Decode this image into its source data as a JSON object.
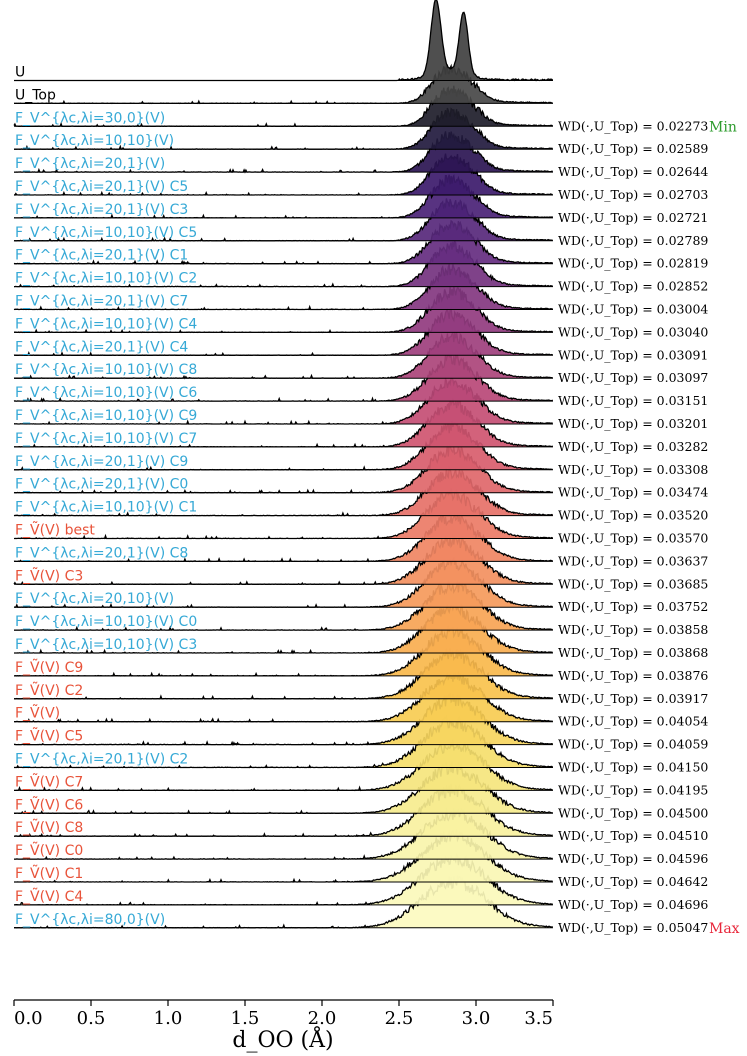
{
  "chart_data": {
    "type": "ridgeline",
    "xlabel": "d_OO (Å)",
    "xlim": [
      0.0,
      3.5
    ],
    "xticks": [
      "0.0",
      "0.5",
      "1.0",
      "1.5",
      "2.0",
      "2.5",
      "3.0",
      "3.5"
    ],
    "x_tick_values": [
      0.0,
      0.5,
      1.0,
      1.5,
      2.0,
      2.5,
      3.0,
      3.5
    ],
    "wd_label_prefix": "WD(·,U_Top) = ",
    "min_label": "Min",
    "max_label": "Max",
    "colors": {
      "min": "#2e9c2e",
      "max": "#e8263a",
      "cyan": "#36a9d6",
      "red": "#e8533a"
    },
    "series": [
      {
        "label": "U",
        "color": "#000000",
        "wd": null,
        "fill": "#404040"
      },
      {
        "label": "U_Top",
        "color": "#000000",
        "wd": null,
        "fill": "#484848"
      },
      {
        "label": "F_V^{λc,λi=30,0}(V)",
        "color": "#36a9d6",
        "wd": "0.02273",
        "fill": "#1e1d2a"
      },
      {
        "label": "F_V^{λc,λi=10,10}(V)",
        "color": "#36a9d6",
        "wd": "0.02589",
        "fill": "#221a3e"
      },
      {
        "label": "F_V^{λc,λi=20,1}(V)",
        "color": "#36a9d6",
        "wd": "0.02644",
        "fill": "#2b1552"
      },
      {
        "label": "F_V^{λc,λi=20,1}(V) C5",
        "color": "#36a9d6",
        "wd": "0.02703",
        "fill": "#3c1a6b"
      },
      {
        "label": "F_V^{λc,λi=20,1}(V) C3",
        "color": "#36a9d6",
        "wd": "0.02721",
        "fill": "#4a2276"
      },
      {
        "label": "F_V^{λc,λi=10,10}(V) C5",
        "color": "#36a9d6",
        "wd": "0.02789",
        "fill": "#57287b"
      },
      {
        "label": "F_V^{λc,λi=20,1}(V) C1",
        "color": "#36a9d6",
        "wd": "0.02819",
        "fill": "#652d80"
      },
      {
        "label": "F_V^{λc,λi=10,10}(V) C2",
        "color": "#36a9d6",
        "wd": "0.02852",
        "fill": "#74327f"
      },
      {
        "label": "F_V^{λc,λi=20,1}(V) C7",
        "color": "#36a9d6",
        "wd": "0.03004",
        "fill": "#833780"
      },
      {
        "label": "F_V^{λc,λi=10,10}(V) C4",
        "color": "#36a9d6",
        "wd": "0.03040",
        "fill": "#913b7f"
      },
      {
        "label": "F_V^{λc,λi=20,1}(V) C4",
        "color": "#36a9d6",
        "wd": "0.03091",
        "fill": "#9e3f7d"
      },
      {
        "label": "F_V^{λc,λi=10,10}(V) C8",
        "color": "#36a9d6",
        "wd": "0.03097",
        "fill": "#ab447a"
      },
      {
        "label": "F_V^{λc,λi=10,10}(V) C6",
        "color": "#36a9d6",
        "wd": "0.03151",
        "fill": "#b84877"
      },
      {
        "label": "F_V^{λc,λi=10,10}(V) C9",
        "color": "#36a9d6",
        "wd": "0.03201",
        "fill": "#c44e74"
      },
      {
        "label": "F_V^{λc,λi=10,10}(V) C7",
        "color": "#36a9d6",
        "wd": "0.03282",
        "fill": "#cf5570"
      },
      {
        "label": "F_V^{λc,λi=20,1}(V) C9",
        "color": "#36a9d6",
        "wd": "0.03308",
        "fill": "#d85d6c"
      },
      {
        "label": "F_V^{λc,λi=20,1}(V) C0",
        "color": "#36a9d6",
        "wd": "0.03474",
        "fill": "#e0676a"
      },
      {
        "label": "F_V^{λc,λi=10,10}(V) C1",
        "color": "#36a9d6",
        "wd": "0.03520",
        "fill": "#e67168"
      },
      {
        "label": "F_Ṽ(V) best",
        "color": "#e8533a",
        "wd": "0.03570",
        "fill": "#eb7b66"
      },
      {
        "label": "F_V^{λc,λi=20,1}(V) C8",
        "color": "#36a9d6",
        "wd": "0.03637",
        "fill": "#f08563"
      },
      {
        "label": "F_Ṽ(V) C3",
        "color": "#e8533a",
        "wd": "0.03685",
        "fill": "#f39060"
      },
      {
        "label": "F_V^{λc,λi=20,10}(V)",
        "color": "#36a9d6",
        "wd": "0.03752",
        "fill": "#f59a5b"
      },
      {
        "label": "F_V^{λc,λi=10,10}(V) C0",
        "color": "#36a9d6",
        "wd": "0.03858",
        "fill": "#f7a455"
      },
      {
        "label": "F_V^{λc,λi=10,10}(V) C3",
        "color": "#36a9d6",
        "wd": "0.03868",
        "fill": "#f8ae50"
      },
      {
        "label": "F_Ṽ(V) C9",
        "color": "#e8533a",
        "wd": "0.03876",
        "fill": "#f8b84c"
      },
      {
        "label": "F_Ṽ(V) C2",
        "color": "#e8533a",
        "wd": "0.03917",
        "fill": "#f8c24d"
      },
      {
        "label": "F_Ṽ(V)",
        "color": "#e8533a",
        "wd": "0.04054",
        "fill": "#f7cc53"
      },
      {
        "label": "F_Ṽ(V) C5",
        "color": "#e8533a",
        "wd": "0.04059",
        "fill": "#f6d55e"
      },
      {
        "label": "F_V^{λc,λi=20,1}(V) C2",
        "color": "#36a9d6",
        "wd": "0.04150",
        "fill": "#f5de6d"
      },
      {
        "label": "F_Ṽ(V) C7",
        "color": "#e8533a",
        "wd": "0.04195",
        "fill": "#f5e57d"
      },
      {
        "label": "F_Ṽ(V) C6",
        "color": "#e8533a",
        "wd": "0.04500",
        "fill": "#f6ec8e"
      },
      {
        "label": "F_Ṽ(V) C8",
        "color": "#e8533a",
        "wd": "0.04510",
        "fill": "#f8f19f"
      },
      {
        "label": "F_Ṽ(V) C0",
        "color": "#e8533a",
        "wd": "0.04596",
        "fill": "#f9f4ab"
      },
      {
        "label": "F_Ṽ(V) C1",
        "color": "#e8533a",
        "wd": "0.04642",
        "fill": "#faf6b4"
      },
      {
        "label": "F_Ṽ(V) C4",
        "color": "#e8533a",
        "wd": "0.04696",
        "fill": "#fbf8bb"
      },
      {
        "label": "F_V^{λc,λi=80,0}(V)",
        "color": "#36a9d6",
        "wd": "0.05047",
        "fill": "#fcfac0"
      }
    ]
  }
}
